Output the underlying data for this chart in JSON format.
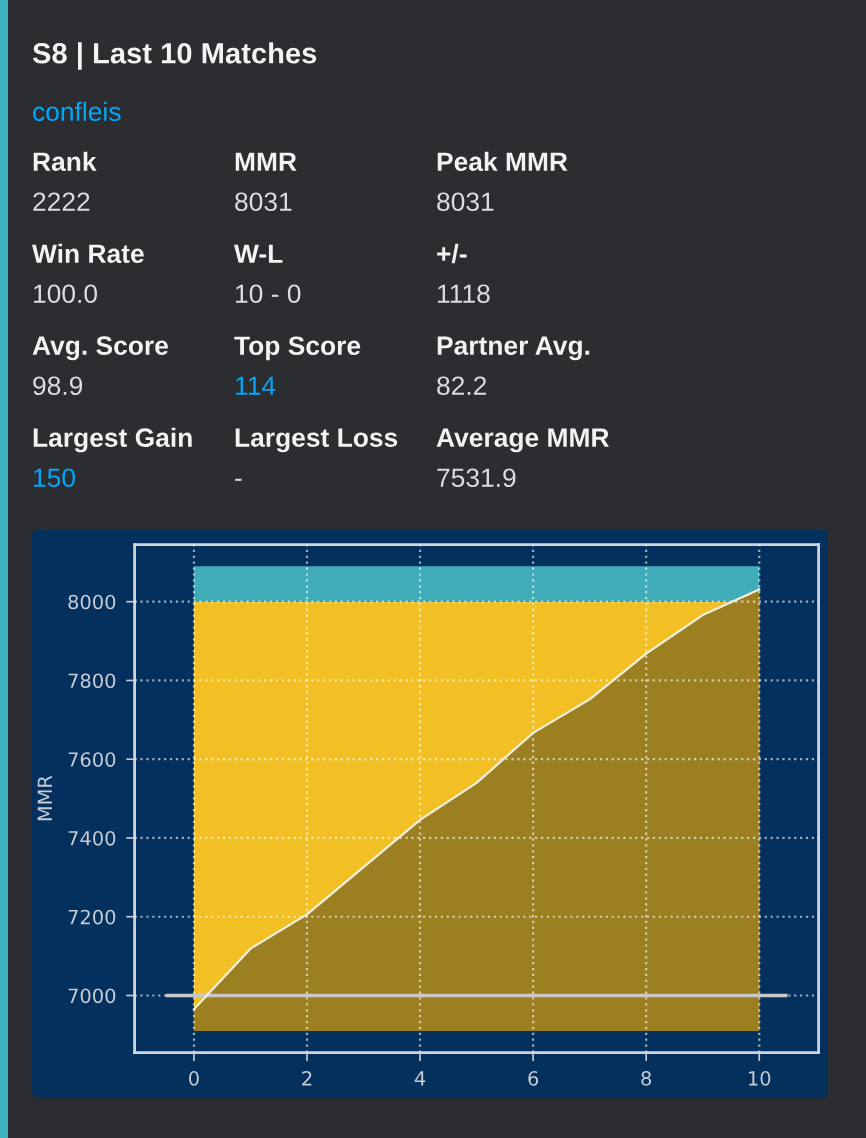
{
  "chart_data": [
    {
      "type": "other",
      "title": "S8 | Last 10 Matches",
      "subtitle": "confleis",
      "annotations": [
        "Rank",
        "MMR",
        "Peak MMR",
        "2222",
        "8031",
        "8031",
        "Win Rate",
        "W-L",
        "+/-",
        "100.0",
        "10 - 0",
        "1118",
        "Avg. Score",
        "Top Score",
        "Partner Avg.",
        "98.9",
        "114",
        "82.2",
        "Largest Gain",
        "Largest Loss",
        "Average MMR",
        "150",
        "-",
        "7531.9"
      ],
      "colors": [
        "#f2f3f5",
        "#f2f3f5",
        "#f2f3f5",
        "#dbdee1",
        "#dbdee1",
        "#dbdee1",
        "#f2f3f5",
        "#f2f3f5",
        "#f2f3f5",
        "#dbdee1",
        "#dbdee1",
        "#dbdee1",
        "#f2f3f5",
        "#f2f3f5",
        "#f2f3f5",
        "#dbdee1",
        "#00a8fc",
        "#dbdee1",
        "#f2f3f5",
        "#f2f3f5",
        "#f2f3f5",
        "#00a8fc",
        "#dbdee1",
        "#dbdee1"
      ]
    },
    {
      "type": "area",
      "ylabel": "MMR",
      "x": [
        0,
        1,
        2,
        3,
        4,
        5,
        6,
        7,
        8,
        9,
        10
      ],
      "series": [
        {
          "type": "area",
          "color": "#9c7f20",
          "values": [
            6965,
            7119,
            7206,
            7326,
            7446,
            7540,
            7667,
            7752,
            7868,
            7966,
            8031
          ]
        }
      ],
      "bands": [
        {
          "axis": "y",
          "from": 6910,
          "to": 8000,
          "color": "#f2c024"
        },
        {
          "axis": "y",
          "from": 8000,
          "to": 8090,
          "color": "#41adb9"
        }
      ],
      "ref_lines": [
        {
          "axis": "y",
          "value": 7000,
          "color": "#c8c8c8"
        }
      ],
      "xlim": [
        -1.05,
        11.05
      ],
      "ylim": [
        6855,
        8145
      ],
      "xticks": [
        0,
        2,
        4,
        6,
        8,
        10
      ],
      "yticks": [
        7000,
        7200,
        7400,
        7600,
        7800,
        8000
      ],
      "grid": true
    }
  ]
}
